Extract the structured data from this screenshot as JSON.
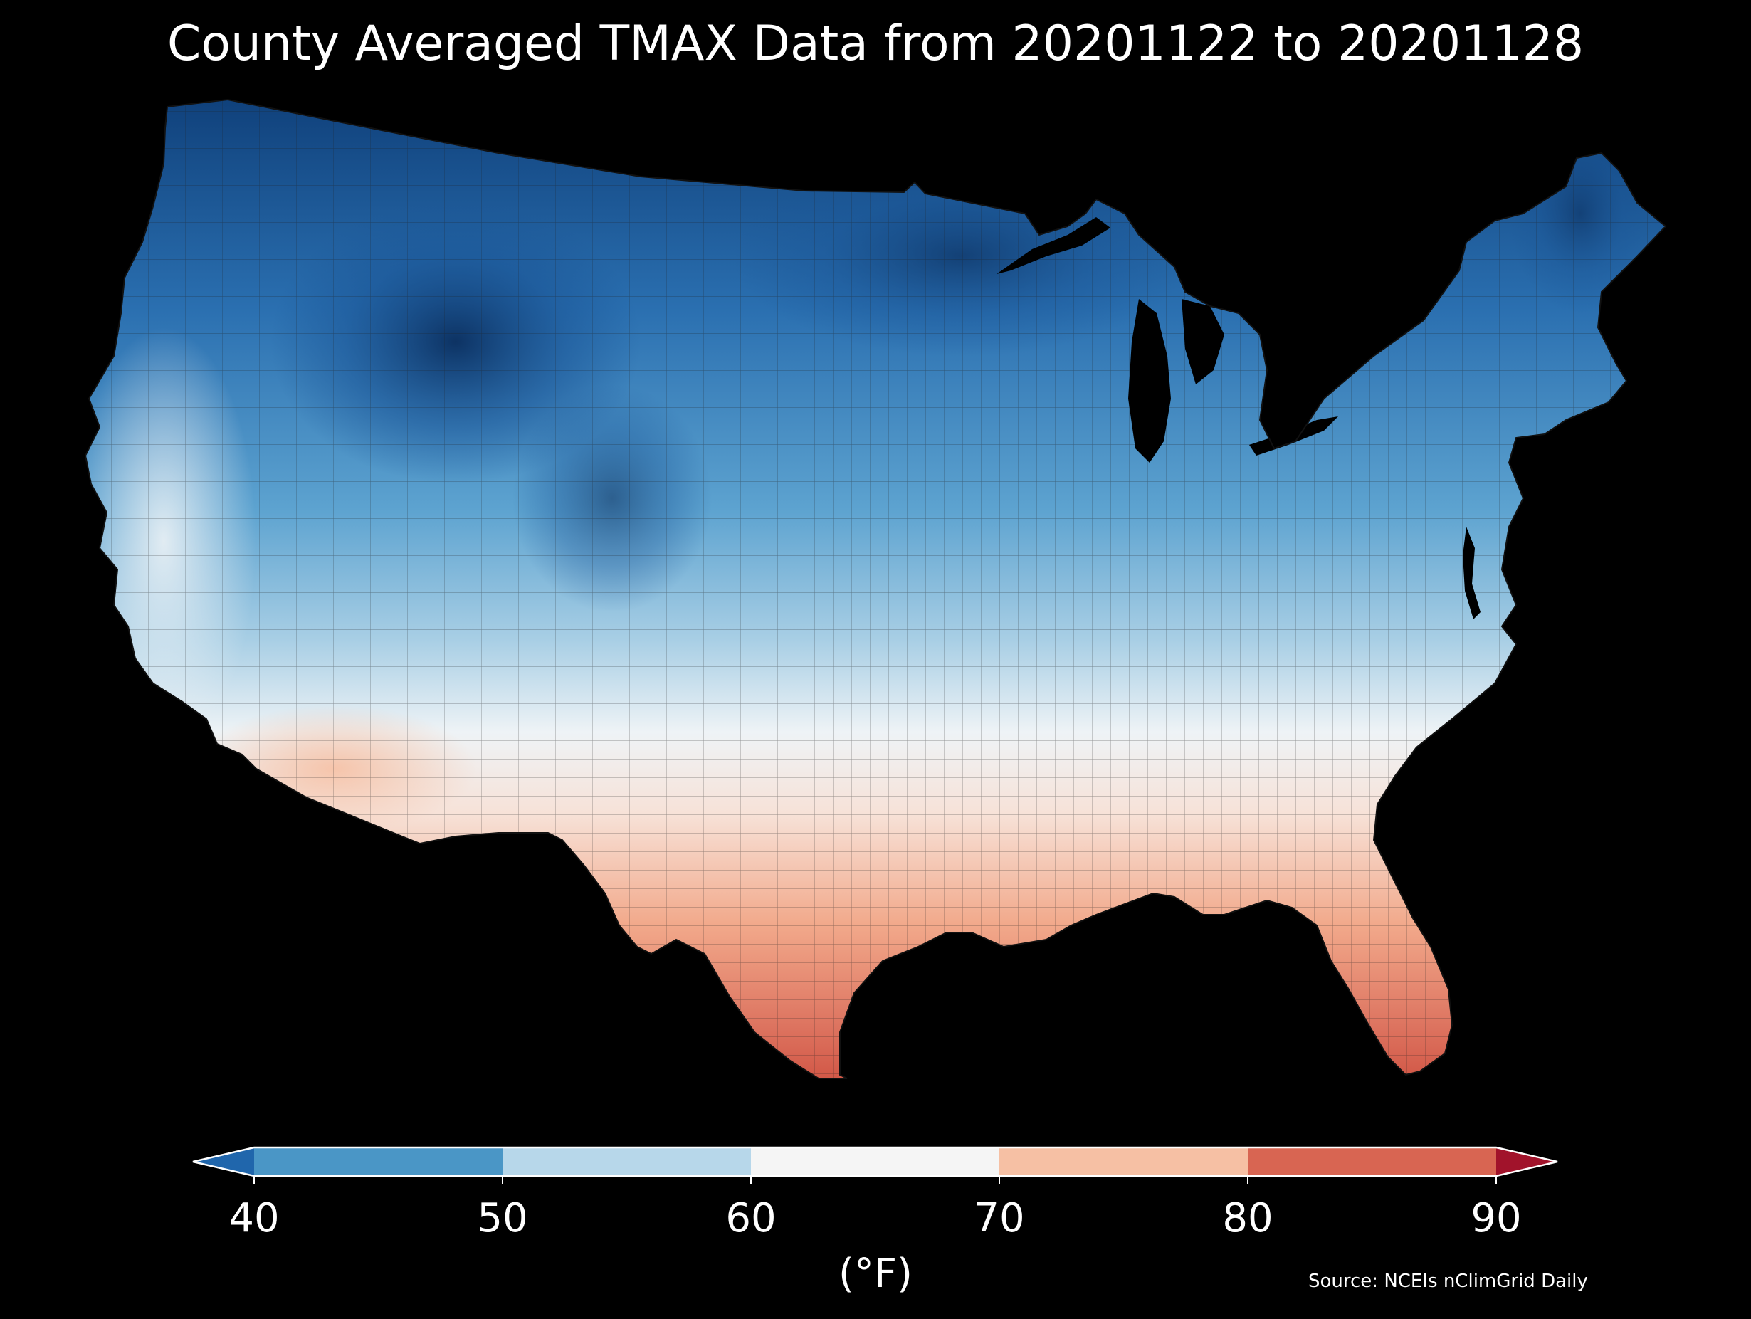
{
  "title": "County Averaged TMAX Data from 20201122 to 20201128",
  "colorbar": {
    "label": "(°F)",
    "ticks": [
      "40",
      "50",
      "60",
      "70",
      "80",
      "90"
    ],
    "bins": [
      {
        "range": [
          -999,
          40
        ],
        "color": "#2066ac",
        "extend": "min"
      },
      {
        "range": [
          40,
          50
        ],
        "color": "#4a96c6"
      },
      {
        "range": [
          50,
          60
        ],
        "color": "#b7d7ea"
      },
      {
        "range": [
          60,
          70
        ],
        "color": "#f5f5f5"
      },
      {
        "range": [
          70,
          80
        ],
        "color": "#f6c0a4"
      },
      {
        "range": [
          80,
          90
        ],
        "color": "#d86552"
      },
      {
        "range": [
          90,
          999
        ],
        "color": "#a1132b",
        "extend": "max"
      }
    ]
  },
  "source": "Source: NCEIs nClimGrid Daily",
  "map": {
    "region": "contiguous United States",
    "unit_level": "county",
    "variable": "TMAX",
    "coldest_area": "northern Rockies / Montana–Wyoming",
    "warmest_area": "southern Texas and south Florida",
    "colors": {
      "background": "#000000",
      "county_border": "#1a1a1a",
      "water": "#000000"
    }
  }
}
